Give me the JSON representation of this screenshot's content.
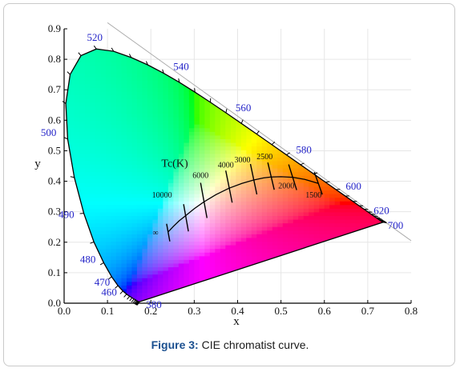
{
  "chart_data": {
    "type": "scatter",
    "xlabel": "x",
    "ylabel": "y",
    "xlim": [
      0.0,
      0.8
    ],
    "ylim": [
      0.0,
      0.9
    ],
    "x_ticks": [
      "0.0",
      "0.1",
      "0.2",
      "0.3",
      "0.4",
      "0.5",
      "0.6",
      "0.7",
      "0.8"
    ],
    "y_ticks": [
      "0.0",
      "0.1",
      "0.2",
      "0.3",
      "0.4",
      "0.5",
      "0.6",
      "0.7",
      "0.8",
      "0.9"
    ],
    "grid": true,
    "spectral_locus_labels": [
      {
        "label": "380",
        "x": 0.1741,
        "y": 0.005
      },
      {
        "label": "460",
        "x": 0.144,
        "y": 0.0297
      },
      {
        "label": "470",
        "x": 0.1241,
        "y": 0.0578
      },
      {
        "label": "480",
        "x": 0.0913,
        "y": 0.1327
      },
      {
        "label": "490",
        "x": 0.0454,
        "y": 0.295
      },
      {
        "label": "500",
        "x": 0.0082,
        "y": 0.5384
      },
      {
        "label": "520",
        "x": 0.0743,
        "y": 0.8338
      },
      {
        "label": "540",
        "x": 0.2296,
        "y": 0.7543
      },
      {
        "label": "560",
        "x": 0.3731,
        "y": 0.6245
      },
      {
        "label": "580",
        "x": 0.5125,
        "y": 0.4866
      },
      {
        "label": "600",
        "x": 0.627,
        "y": 0.3725
      },
      {
        "label": "620",
        "x": 0.6915,
        "y": 0.3083
      },
      {
        "label": "700",
        "x": 0.7347,
        "y": 0.2653
      }
    ],
    "planckian_locus_title": "Tc(K)",
    "planckian_locus": [
      {
        "label": "∞",
        "x": 0.24,
        "y": 0.234
      },
      {
        "label": "10000",
        "x": 0.281,
        "y": 0.288
      },
      {
        "label": "6000",
        "x": 0.322,
        "y": 0.332
      },
      {
        "label": "4000",
        "x": 0.38,
        "y": 0.377
      },
      {
        "label": "3000",
        "x": 0.437,
        "y": 0.404
      },
      {
        "label": "2500",
        "x": 0.477,
        "y": 0.414
      },
      {
        "label": "2000",
        "x": 0.527,
        "y": 0.413
      },
      {
        "label": "1500",
        "x": 0.586,
        "y": 0.393
      }
    ]
  },
  "caption": {
    "prefix": "Figure 3:",
    "text": " CIE chromatist curve."
  }
}
